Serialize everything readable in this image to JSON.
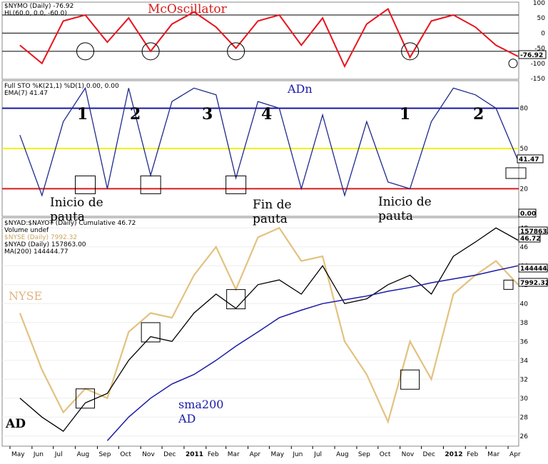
{
  "chart_data": [
    {
      "type": "line",
      "panel": "mcclellan-oscillator",
      "legend": [
        "$NYMO (Daily) -76.92",
        "HL(60.0, 0.0, -60.0)"
      ],
      "title_annotation": "McOscillator",
      "y_ticks": [
        "100",
        "50",
        "0",
        "-50",
        "-100",
        "-150"
      ],
      "ylim": [
        -150,
        100
      ],
      "reference_lines": [
        60,
        0,
        -60
      ],
      "last_value_label": "-76.92",
      "colors": {
        "series": "#e8141e",
        "reference": "#000000",
        "circles": "#000000"
      },
      "series": [
        {
          "name": "$NYMO (Daily)",
          "x": [
            "2010-05",
            "2010-06",
            "2010-07",
            "2010-08",
            "2010-09",
            "2010-10",
            "2010-11",
            "2010-12",
            "2011-01",
            "2011-02",
            "2011-03",
            "2011-04",
            "2011-05",
            "2011-06",
            "2011-07",
            "2011-08",
            "2011-09",
            "2011-10",
            "2011-11",
            "2011-12",
            "2012-01",
            "2012-02",
            "2012-03",
            "2012-04"
          ],
          "values": [
            -40,
            -100,
            40,
            60,
            -30,
            50,
            -60,
            30,
            70,
            20,
            -50,
            40,
            60,
            -40,
            50,
            -110,
            30,
            80,
            -80,
            40,
            60,
            20,
            -40,
            -77
          ]
        }
      ],
      "circled_lows": [
        "2010-08",
        "2010-11",
        "2011-03",
        "2011-11",
        "2012-04"
      ]
    },
    {
      "type": "line",
      "panel": "full-stochastic",
      "legend": [
        "Full STO %K(21,1) %D(1) 0.00, 0.00",
        "EMA(7) 41.47"
      ],
      "legend_red_value": "0.00",
      "title_annotation": "ADn",
      "y_ticks": [
        "80",
        "50",
        "20"
      ],
      "ylim": [
        0,
        100
      ],
      "reference_lines": [
        {
          "value": 80,
          "color": "#1a1aa6"
        },
        {
          "value": 50,
          "color": "#f2f200"
        },
        {
          "value": 20,
          "color": "#d81c1c"
        }
      ],
      "last_value_label": "41.47",
      "colors": {
        "series": "#1f2a8c"
      },
      "series": [
        {
          "name": "EMA(7)",
          "x": [
            "2010-05",
            "2010-06",
            "2010-07",
            "2010-08",
            "2010-09",
            "2010-10",
            "2010-11",
            "2010-12",
            "2011-01",
            "2011-02",
            "2011-03",
            "2011-04",
            "2011-05",
            "2011-06",
            "2011-07",
            "2011-08",
            "2011-09",
            "2011-10",
            "2011-11",
            "2011-12",
            "2012-01",
            "2012-02",
            "2012-03",
            "2012-04"
          ],
          "values": [
            60,
            15,
            70,
            95,
            20,
            95,
            30,
            85,
            95,
            90,
            28,
            85,
            80,
            20,
            75,
            15,
            70,
            25,
            20,
            70,
            95,
            90,
            80,
            41
          ]
        }
      ],
      "numbered_annotations": [
        "1",
        "2",
        "3",
        "4",
        "1",
        "2"
      ],
      "text_annotations": [
        "Inicio de pauta",
        "Fin de pauta",
        "Inicio de pauta"
      ],
      "boxed_lows": [
        "2010-08",
        "2010-11",
        "2011-03",
        "2012-04"
      ]
    },
    {
      "type": "line",
      "panel": "nyse-advance-decline",
      "legend": [
        "$NYAD:$NAYOT (Daily) Cumulative 46.72",
        "Volume undef",
        "$NYSE (Daily) 7992.32",
        "$NYAD (Daily) 157863.00",
        "MA(200) 144444.77"
      ],
      "top_label": "0.00",
      "y_ticks": [
        "48",
        "46",
        "44",
        "42",
        "40",
        "38",
        "36",
        "34",
        "32",
        "30",
        "28",
        "26"
      ],
      "ylim": [
        25,
        49
      ],
      "right_labels": [
        "157863.",
        "46.72",
        "144444.",
        "7992.32"
      ],
      "annotations": [
        "NYSE",
        "sma200 AD",
        "AD"
      ],
      "x_ticks": [
        "May",
        "Jun",
        "Jul",
        "Aug",
        "Sep",
        "Oct",
        "Nov",
        "Dec",
        "2011",
        "Feb",
        "Mar",
        "Apr",
        "May",
        "Jun",
        "Jul",
        "Aug",
        "Sep",
        "Oct",
        "Nov",
        "Dec",
        "2012",
        "Feb",
        "Mar",
        "Apr"
      ],
      "colors": {
        "ad": "#000000",
        "nyse": "#e2c27f",
        "ma200": "#1a1aa6",
        "boxes": "#000000"
      },
      "series": [
        {
          "name": "$NYAD (Daily)",
          "x": [
            "2010-05",
            "2010-06",
            "2010-07",
            "2010-08",
            "2010-09",
            "2010-10",
            "2010-11",
            "2010-12",
            "2011-01",
            "2011-02",
            "2011-03",
            "2011-04",
            "2011-05",
            "2011-06",
            "2011-07",
            "2011-08",
            "2011-09",
            "2011-10",
            "2011-11",
            "2011-12",
            "2012-01",
            "2012-02",
            "2012-03",
            "2012-04"
          ],
          "values": [
            30,
            28,
            26.5,
            29.5,
            30.5,
            34,
            36.5,
            36,
            39,
            41,
            39.5,
            42,
            42.5,
            41,
            44,
            40,
            40.5,
            42,
            43,
            41,
            45,
            46.5,
            48,
            46.7
          ]
        },
        {
          "name": "$NYSE (Daily)",
          "x": [
            "2010-05",
            "2010-06",
            "2010-07",
            "2010-08",
            "2010-09",
            "2010-10",
            "2010-11",
            "2010-12",
            "2011-01",
            "2011-02",
            "2011-03",
            "2011-04",
            "2011-05",
            "2011-06",
            "2011-07",
            "2011-08",
            "2011-09",
            "2011-10",
            "2011-11",
            "2011-12",
            "2012-01",
            "2012-02",
            "2012-03",
            "2012-04"
          ],
          "values": [
            39,
            33,
            28.5,
            31,
            30,
            37,
            39,
            38.5,
            43,
            46,
            41.5,
            47,
            48,
            44.5,
            45,
            36,
            32.5,
            27.5,
            36,
            32,
            41,
            43,
            44.5,
            42
          ]
        },
        {
          "name": "MA(200)",
          "x": [
            "2010-09",
            "2010-10",
            "2010-11",
            "2010-12",
            "2011-01",
            "2011-02",
            "2011-03",
            "2011-04",
            "2011-05",
            "2011-06",
            "2011-07",
            "2011-08",
            "2011-09",
            "2011-10",
            "2011-11",
            "2011-12",
            "2012-01",
            "2012-02",
            "2012-03",
            "2012-04"
          ],
          "values": [
            25.5,
            28,
            30,
            31.5,
            32.5,
            34,
            35.5,
            37,
            38.5,
            39.3,
            40,
            40.4,
            40.8,
            41.3,
            41.7,
            42.2,
            42.6,
            43,
            43.5,
            44
          ]
        }
      ],
      "boxed_points": [
        "2010-08",
        "2010-11",
        "2011-03",
        "2011-11",
        "2012-04"
      ]
    }
  ]
}
